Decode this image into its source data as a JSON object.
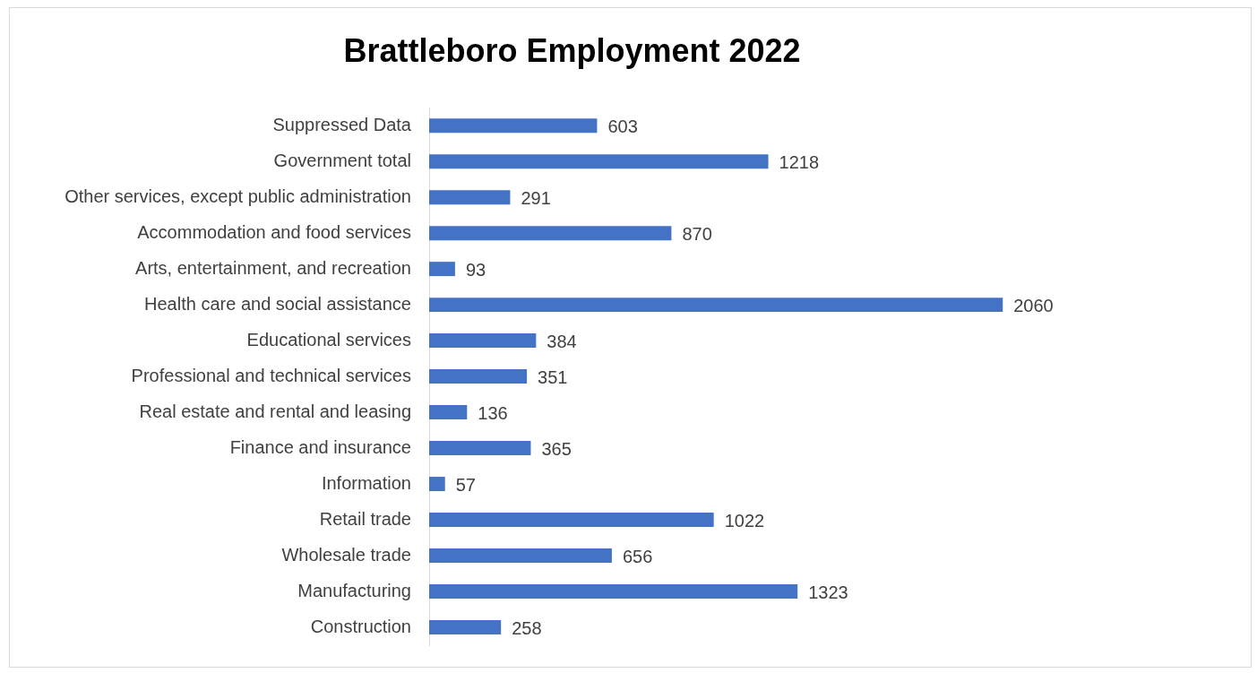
{
  "chart_data": {
    "type": "bar",
    "title": "Brattleboro Employment 2022",
    "orientation": "horizontal",
    "categories": [
      "Suppressed Data",
      "Government total",
      "Other services, except public administration",
      "Accommodation and food services",
      "Arts, entertainment, and recreation",
      "Health care and social assistance",
      "Educational services",
      "Professional and technical services",
      "Real estate and rental and leasing",
      "Finance and insurance",
      "Information",
      "Retail trade",
      "Wholesale trade",
      "Manufacturing",
      "Construction"
    ],
    "values": [
      603,
      1218,
      291,
      870,
      93,
      2060,
      384,
      351,
      136,
      365,
      57,
      1022,
      656,
      1323,
      258
    ],
    "color": "#4472c4",
    "data_labels": true,
    "grid": false,
    "legend": false
  }
}
